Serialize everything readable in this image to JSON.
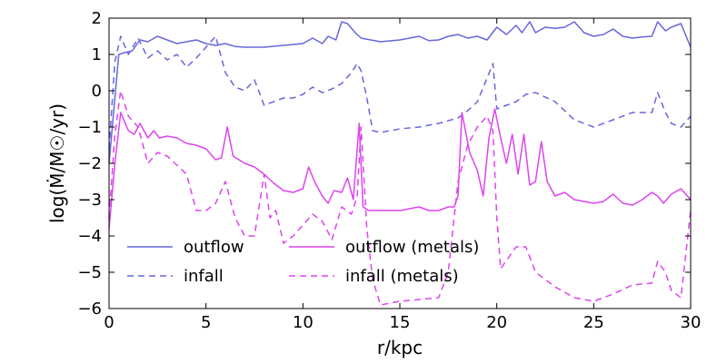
{
  "chart_data": {
    "type": "line",
    "title": "",
    "xlabel": "r/kpc",
    "ylabel": "log(Ṁ/M☉/yr)",
    "xlim": [
      0,
      30
    ],
    "ylim": [
      -6,
      2
    ],
    "xticks": [
      0,
      5,
      10,
      15,
      20,
      25,
      30
    ],
    "yticks": [
      -6,
      -5,
      -4,
      -3,
      -2,
      -1,
      0,
      1,
      2
    ],
    "legend_position": "lower-left",
    "series": [
      {
        "name": "outflow",
        "color": "#6666dd",
        "dash": "solid",
        "x": [
          0,
          0.5,
          0.8,
          1.2,
          1.6,
          2.0,
          2.5,
          3.0,
          3.5,
          4.0,
          4.5,
          5.0,
          5.5,
          6.0,
          6.5,
          7.0,
          8.0,
          9.0,
          10.0,
          10.5,
          11.0,
          11.3,
          11.7,
          12.0,
          12.3,
          12.7,
          13.0,
          14.0,
          15.0,
          16.0,
          16.5,
          17.0,
          17.5,
          18.0,
          18.5,
          19.0,
          19.5,
          20.0,
          20.5,
          21.0,
          21.3,
          21.7,
          22.0,
          22.5,
          23.0,
          23.5,
          24.0,
          24.5,
          25.0,
          25.5,
          26.0,
          26.5,
          27.0,
          27.5,
          28.0,
          28.3,
          28.7,
          29.0,
          29.5,
          30.0
        ],
        "y": [
          -2.0,
          1.0,
          1.05,
          1.1,
          1.4,
          1.35,
          1.5,
          1.4,
          1.3,
          1.35,
          1.4,
          1.3,
          1.25,
          1.3,
          1.22,
          1.2,
          1.2,
          1.25,
          1.3,
          1.45,
          1.3,
          1.5,
          1.4,
          1.9,
          1.85,
          1.6,
          1.45,
          1.35,
          1.4,
          1.5,
          1.38,
          1.4,
          1.5,
          1.55,
          1.45,
          1.5,
          1.4,
          1.75,
          1.55,
          1.8,
          1.6,
          1.9,
          1.6,
          1.75,
          1.72,
          1.75,
          1.9,
          1.6,
          1.5,
          1.55,
          1.7,
          1.5,
          1.45,
          1.48,
          1.5,
          1.9,
          1.65,
          1.75,
          1.85,
          1.2
        ]
      },
      {
        "name": "infall",
        "color": "#6666dd",
        "dash": "dashed",
        "x": [
          0,
          0.3,
          0.6,
          1.0,
          1.5,
          2.0,
          2.5,
          3.0,
          3.5,
          4.0,
          4.5,
          5.0,
          5.5,
          6.0,
          6.5,
          7.0,
          7.5,
          8.0,
          8.5,
          9.0,
          9.5,
          10.0,
          10.5,
          11.0,
          11.5,
          12.0,
          12.5,
          12.8,
          13.0,
          13.3,
          13.6,
          14.0,
          15.0,
          16.0,
          17.0,
          18.0,
          18.5,
          19.0,
          19.5,
          19.8,
          20.0,
          20.5,
          21.0,
          21.5,
          22.0,
          23.0,
          24.0,
          25.0,
          26.0,
          27.0,
          28.0,
          28.3,
          28.7,
          29.0,
          29.5,
          30.0
        ],
        "y": [
          -1.6,
          0.8,
          1.5,
          1.0,
          1.45,
          0.9,
          1.1,
          0.85,
          1.0,
          0.65,
          0.9,
          1.2,
          1.5,
          0.5,
          0.1,
          0.0,
          0.3,
          -0.4,
          -0.3,
          -0.2,
          -0.2,
          -0.1,
          0.1,
          -0.05,
          0.05,
          0.2,
          0.5,
          0.75,
          0.55,
          -0.2,
          -1.1,
          -1.15,
          -1.05,
          -1.0,
          -0.9,
          -0.75,
          -0.55,
          -0.3,
          0.35,
          0.75,
          -0.5,
          -0.4,
          -0.3,
          -0.1,
          -0.05,
          -0.3,
          -0.8,
          -1.0,
          -0.8,
          -0.6,
          -0.6,
          -0.05,
          -0.6,
          -0.9,
          -1.0,
          -0.7
        ]
      },
      {
        "name": "outflow (metals)",
        "color": "#dd44ee",
        "dash": "solid",
        "x": [
          0,
          0.3,
          0.6,
          1.0,
          1.3,
          1.6,
          2.0,
          2.3,
          2.6,
          3.0,
          3.5,
          4.0,
          4.5,
          5.0,
          5.5,
          5.8,
          6.1,
          6.4,
          6.7,
          7.0,
          7.5,
          8.0,
          8.5,
          9.0,
          9.5,
          10.0,
          10.3,
          10.6,
          11.0,
          11.3,
          11.6,
          12.0,
          12.3,
          12.6,
          12.9,
          13.1,
          13.4,
          14.0,
          15.0,
          16.0,
          16.5,
          17.0,
          17.5,
          17.8,
          18.0,
          18.2,
          18.6,
          19.0,
          19.3,
          19.6,
          19.9,
          20.2,
          20.5,
          20.8,
          21.1,
          21.4,
          21.7,
          22.0,
          22.3,
          22.6,
          23.0,
          23.5,
          24.0,
          25.0,
          25.5,
          26.0,
          26.5,
          27.0,
          27.5,
          28.0,
          28.3,
          28.6,
          29.0,
          29.5,
          30.0
        ],
        "y": [
          -3.8,
          -2.0,
          -0.6,
          -1.1,
          -1.2,
          -0.9,
          -1.3,
          -1.1,
          -1.3,
          -1.25,
          -1.3,
          -1.45,
          -1.5,
          -1.6,
          -1.9,
          -1.85,
          -1.0,
          -1.8,
          -1.9,
          -2.0,
          -2.1,
          -2.3,
          -2.55,
          -2.75,
          -2.8,
          -2.7,
          -2.1,
          -2.5,
          -2.9,
          -3.1,
          -2.75,
          -2.8,
          -2.4,
          -3.0,
          -0.9,
          -3.2,
          -3.3,
          -3.3,
          -3.3,
          -3.2,
          -3.3,
          -3.3,
          -3.2,
          -3.2,
          -2.9,
          -0.6,
          -1.7,
          -2.2,
          -2.9,
          -1.3,
          -0.5,
          -1.3,
          -2.0,
          -1.2,
          -2.3,
          -1.2,
          -2.6,
          -2.5,
          -1.4,
          -2.5,
          -2.9,
          -2.8,
          -3.0,
          -3.1,
          -3.05,
          -2.85,
          -3.1,
          -3.15,
          -3.0,
          -2.8,
          -2.9,
          -3.1,
          -2.85,
          -2.7,
          -3.0
        ]
      },
      {
        "name": "infall (metals)",
        "color": "#dd44ee",
        "dash": "dashed",
        "x": [
          0,
          0.3,
          0.6,
          1.0,
          1.5,
          2.0,
          2.5,
          3.0,
          3.5,
          4.0,
          4.5,
          5.0,
          5.5,
          6.0,
          6.5,
          7.0,
          7.5,
          8.0,
          8.3,
          8.6,
          9.0,
          9.5,
          10.0,
          10.5,
          11.0,
          11.5,
          12.0,
          12.5,
          12.8,
          13.0,
          13.3,
          13.6,
          14.0,
          15.0,
          16.0,
          17.0,
          17.5,
          18.0,
          18.5,
          19.0,
          19.5,
          19.8,
          20.0,
          20.2,
          20.6,
          21.0,
          21.5,
          22.0,
          23.0,
          24.0,
          25.0,
          26.0,
          27.0,
          28.0,
          28.3,
          28.7,
          29.0,
          29.5,
          30.0
        ],
        "y": [
          -3.5,
          -1.2,
          0.0,
          -0.7,
          -1.0,
          -2.0,
          -1.7,
          -1.8,
          -2.05,
          -2.3,
          -3.3,
          -3.3,
          -3.1,
          -2.5,
          -3.5,
          -4.0,
          -4.0,
          -2.3,
          -3.5,
          -3.3,
          -4.2,
          -4.0,
          -3.7,
          -3.4,
          -3.6,
          -4.1,
          -3.2,
          -3.4,
          -2.9,
          -1.0,
          -3.8,
          -5.2,
          -5.9,
          -5.8,
          -5.75,
          -5.7,
          -5.0,
          -2.5,
          -1.5,
          -1.0,
          -0.7,
          -1.1,
          -3.5,
          -4.9,
          -4.6,
          -4.3,
          -4.3,
          -5.0,
          -5.4,
          -5.7,
          -5.8,
          -5.6,
          -5.35,
          -5.3,
          -4.7,
          -5.0,
          -5.5,
          -5.7,
          -3.3
        ]
      }
    ]
  }
}
